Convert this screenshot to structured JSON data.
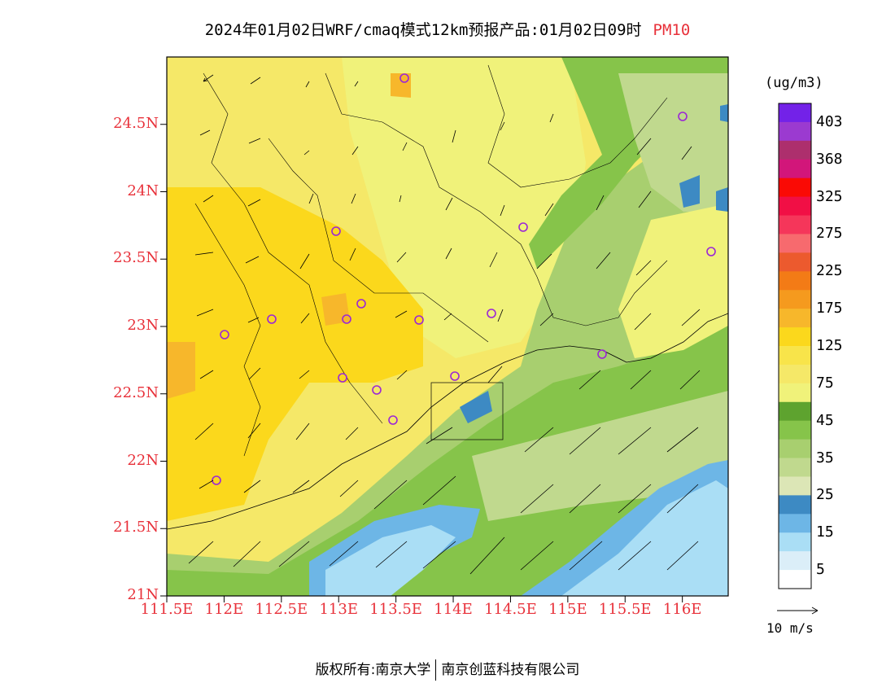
{
  "title": {
    "main": "2024年01月02日WRF/cmaq模式12km预报产品:01月02日09时",
    "pollutant": "PM10"
  },
  "map": {
    "lat_labels": [
      "24.5N",
      "24N",
      "23.5N",
      "23N",
      "22.5N",
      "22N",
      "21.5N",
      "21N"
    ],
    "lon_labels": [
      "111.5E",
      "112E",
      "112.5E",
      "113E",
      "113.5E",
      "114E",
      "114.5E",
      "115E",
      "115.5E",
      "116E"
    ],
    "lat_range": [
      21.0,
      25.0
    ],
    "lon_range": [
      111.5,
      116.4
    ]
  },
  "colorbar": {
    "unit": "(ug/m3)",
    "colors": [
      "#ffffff",
      "#dbeef8",
      "#aadef5",
      "#6db6e6",
      "#3d8ac3",
      "#dce6b6",
      "#c0d98e",
      "#a8cf6f",
      "#86c44a",
      "#5ea32f",
      "#f0f27a",
      "#f5e868",
      "#f8e44a",
      "#fbd81c",
      "#f7b72b",
      "#f59a1e",
      "#f37b16",
      "#ec5a2e",
      "#f76a6e",
      "#f5365a",
      "#f10f45",
      "#fa0a05",
      "#d2167a",
      "#ad2f6d",
      "#9b3ad0",
      "#7322e8"
    ],
    "labels": [
      "5",
      "15",
      "25",
      "35",
      "45",
      "75",
      "125",
      "175",
      "225",
      "275",
      "325",
      "368",
      "403"
    ]
  },
  "wind_scale": {
    "label": "10 m/s"
  },
  "footer": {
    "left": "版权所有:南京大学",
    "right": "南京创蓝科技有限公司"
  }
}
